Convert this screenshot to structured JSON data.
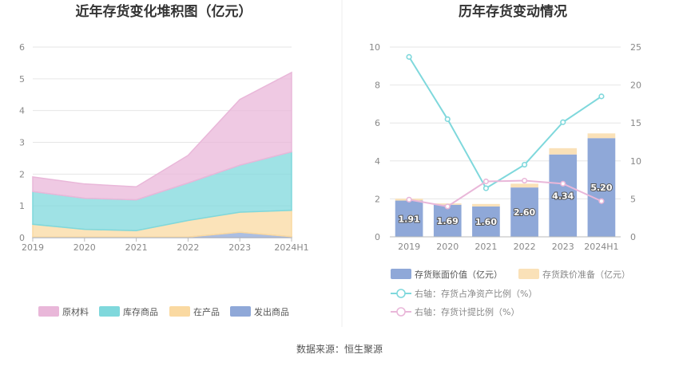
{
  "chart_data": [
    {
      "type": "area",
      "stacked": true,
      "title": "近年存货变化堆积图（亿元）",
      "categories": [
        "2019",
        "2020",
        "2021",
        "2022",
        "2023",
        "2024H1"
      ],
      "ylim": [
        0,
        6
      ],
      "yticks": [
        "0",
        "1",
        "2",
        "3",
        "4",
        "5",
        "6"
      ],
      "grid": true,
      "legend_position": "bottom",
      "colors": {
        "原材料": "#e9b7d9",
        "库存商品": "#7fd8dc",
        "在产品": "#fad9a1",
        "发出商品": "#8fa8d8"
      },
      "series": [
        {
          "name": "发出商品",
          "values": [
            0.02,
            0.02,
            0.02,
            0.02,
            0.17,
            0.03
          ]
        },
        {
          "name": "在产品",
          "values": [
            0.4,
            0.24,
            0.2,
            0.52,
            0.63,
            0.83
          ]
        },
        {
          "name": "库存商品",
          "values": [
            1.03,
            0.98,
            0.97,
            1.18,
            1.48,
            1.84
          ]
        },
        {
          "name": "原材料",
          "values": [
            0.46,
            0.45,
            0.41,
            0.87,
            2.07,
            2.5
          ]
        }
      ],
      "legend_order": [
        "原材料",
        "库存商品",
        "在产品",
        "发出商品"
      ]
    },
    {
      "type": "bar",
      "title": "历年存货变动情况",
      "categories": [
        "2019",
        "2020",
        "2021",
        "2022",
        "2023",
        "2024H1"
      ],
      "ylim": [
        0,
        10
      ],
      "yticks": [
        "0",
        "2",
        "4",
        "6",
        "8",
        "10"
      ],
      "y2lim": [
        0,
        25
      ],
      "y2ticks": [
        "0",
        "5",
        "10",
        "15",
        "20",
        "25"
      ],
      "grid": true,
      "legend_position": "bottom",
      "series": [
        {
          "name": "存货账面价值（亿元）",
          "axis": "left",
          "type": "bar",
          "color": "#8fa8d8",
          "values": [
            1.91,
            1.69,
            1.6,
            2.6,
            4.34,
            5.2
          ],
          "labels": [
            "1.91",
            "1.69",
            "1.60",
            "2.60",
            "4.34",
            "5.20"
          ]
        },
        {
          "name": "存货跌价准备（亿元）",
          "axis": "left",
          "type": "bar-stack",
          "color": "#fae1b8",
          "values": [
            0.1,
            0.07,
            0.13,
            0.2,
            0.33,
            0.25
          ]
        },
        {
          "name": "右轴：存货占净资产比例（%）",
          "axis": "right",
          "type": "line",
          "color": "#7fd8dc",
          "values": [
            23.7,
            15.5,
            6.4,
            9.5,
            15.1,
            18.5
          ]
        },
        {
          "name": "右轴：存货计提比例（%）",
          "axis": "right",
          "type": "line",
          "color": "#e9b7d9",
          "values": [
            4.9,
            4.0,
            7.3,
            7.4,
            7.0,
            4.7
          ]
        }
      ]
    }
  ],
  "footer": {
    "source": "数据来源：恒生聚源"
  }
}
